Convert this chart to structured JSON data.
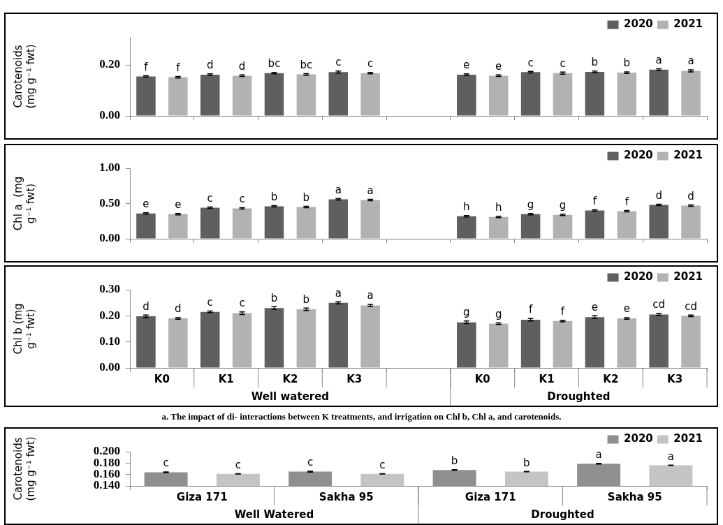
{
  "chart_data": [
    {
      "type": "bar",
      "ylabel": "Carotenoids (mg g⁻¹ fwt)",
      "categories": [
        null,
        null,
        null,
        null,
        null,
        null,
        null,
        null,
        null
      ],
      "ylim": [
        0,
        0.31
      ],
      "yticks": [
        {
          "value": 0,
          "label": "0.00"
        },
        {
          "value": 0.2,
          "label": "0.20"
        }
      ],
      "legend": "top right",
      "series": [
        {
          "name": "2020",
          "color": "#5f5f5f",
          "values": [
            0.155,
            0.162,
            0.168,
            0.172,
            null,
            0.162,
            0.172,
            0.173,
            0.182
          ],
          "errors": [
            0.003,
            0.003,
            0.003,
            0.004,
            null,
            0.003,
            0.003,
            0.003,
            0.003
          ],
          "value_labels": [
            "f",
            "d",
            "bc",
            "c",
            null,
            "e",
            "c",
            "b",
            "a"
          ]
        },
        {
          "name": "2021",
          "color": "#b2b2b2",
          "values": [
            0.152,
            0.158,
            0.163,
            0.168,
            null,
            0.158,
            0.168,
            0.17,
            0.177
          ],
          "errors": [
            0.003,
            0.003,
            0.003,
            0.003,
            null,
            0.003,
            0.004,
            0.003,
            0.004
          ],
          "value_labels": [
            "f",
            "d",
            "bc",
            "c",
            null,
            "e",
            "c",
            "b",
            "a"
          ]
        }
      ]
    },
    {
      "type": "bar",
      "ylabel": "Chl a  (mg g⁻¹ fwt)",
      "categories": [
        null,
        null,
        null,
        null,
        null,
        null,
        null,
        null,
        null
      ],
      "ylim": [
        0,
        1
      ],
      "yticks": [
        {
          "value": 0,
          "label": "0.00"
        },
        {
          "value": 0.5,
          "label": "0.50"
        },
        {
          "value": 1,
          "label": "1.00"
        }
      ],
      "legend": "top right",
      "series": [
        {
          "name": "2020",
          "color": "#5f5f5f",
          "values": [
            0.36,
            0.44,
            0.46,
            0.56,
            null,
            0.32,
            0.35,
            0.4,
            0.48
          ],
          "errors": [
            0.01,
            0.01,
            0.01,
            0.01,
            null,
            0.01,
            0.01,
            0.01,
            0.01
          ],
          "value_labels": [
            "e",
            "c",
            "b",
            "a",
            null,
            "h",
            "g",
            "f",
            "d"
          ]
        },
        {
          "name": "2021",
          "color": "#b2b2b2",
          "values": [
            0.35,
            0.43,
            0.45,
            0.55,
            null,
            0.31,
            0.34,
            0.39,
            0.47
          ],
          "errors": [
            0.01,
            0.01,
            0.01,
            0.01,
            null,
            0.01,
            0.01,
            0.01,
            0.01
          ],
          "value_labels": [
            "e",
            "c",
            "b",
            "a",
            null,
            "h",
            "g",
            "f",
            "d"
          ]
        }
      ]
    },
    {
      "type": "bar",
      "ylabel": "Chl b (mg g⁻¹ fwt)",
      "categories": [
        "K0",
        "K1",
        "K2",
        "K3",
        null,
        "K0",
        "K1",
        "K2",
        "K3"
      ],
      "ylim": [
        0,
        0.3
      ],
      "yticks": [
        {
          "value": 0,
          "label": "0.00"
        },
        {
          "value": 0.1,
          "label": "0.10"
        },
        {
          "value": 0.2,
          "label": "0.20"
        },
        {
          "value": 0.3,
          "label": "0.30"
        }
      ],
      "legend": "top right",
      "annotations": [
        "Well watered",
        "Droughted",
        "a. The impact of di- interactions between K treatments, and irrigation on Chl b, Chl a, and carotenoids."
      ],
      "series": [
        {
          "name": "2020",
          "color": "#5f5f5f",
          "values": [
            0.198,
            0.215,
            0.23,
            0.25,
            null,
            0.175,
            0.185,
            0.195,
            0.205
          ],
          "errors": [
            0.005,
            0.003,
            0.005,
            0.004,
            null,
            0.005,
            0.005,
            0.005,
            0.004
          ],
          "value_labels": [
            "d",
            "c",
            "b",
            "a",
            null,
            "g",
            "f",
            "e",
            "cd"
          ]
        },
        {
          "name": "2021",
          "color": "#b2b2b2",
          "values": [
            0.19,
            0.21,
            0.225,
            0.24,
            null,
            0.17,
            0.18,
            0.19,
            0.2
          ],
          "errors": [
            0.003,
            0.005,
            0.005,
            0.004,
            null,
            0.003,
            0.003,
            0.003,
            0.003
          ],
          "value_labels": [
            "d",
            "c",
            "b",
            "a",
            null,
            "g",
            "f",
            "e",
            "cd"
          ]
        }
      ]
    },
    {
      "type": "bar",
      "ylabel": "Carotenoids (mg g⁻¹ fwt)",
      "categories": [
        "Giza 171",
        "Sakha 95",
        "Giza 171",
        "Sakha 95"
      ],
      "ylim": [
        0.14,
        0.2
      ],
      "yticks": [
        {
          "value": 0.14,
          "label": "0.140"
        },
        {
          "value": 0.16,
          "label": "0.160"
        },
        {
          "value": 0.18,
          "label": "0.180"
        },
        {
          "value": 0.2,
          "label": "0.200"
        }
      ],
      "legend": "top right",
      "annotations": [
        "Well Watered",
        "Droughted"
      ],
      "series": [
        {
          "name": "2020",
          "color": "#8f8f8f",
          "values": [
            0.164,
            0.165,
            0.168,
            0.179
          ],
          "errors": [
            0.0006,
            0.0008,
            0.0006,
            0.0006
          ],
          "value_labels": [
            "c",
            "c",
            "b",
            "a"
          ]
        },
        {
          "name": "2021",
          "color": "#c4c4c4",
          "values": [
            0.161,
            0.161,
            0.165,
            0.176
          ],
          "errors": [
            0.0003,
            0.0003,
            0.0003,
            0.0003
          ],
          "value_labels": [
            "c",
            "c",
            "b",
            "a"
          ]
        }
      ]
    }
  ]
}
